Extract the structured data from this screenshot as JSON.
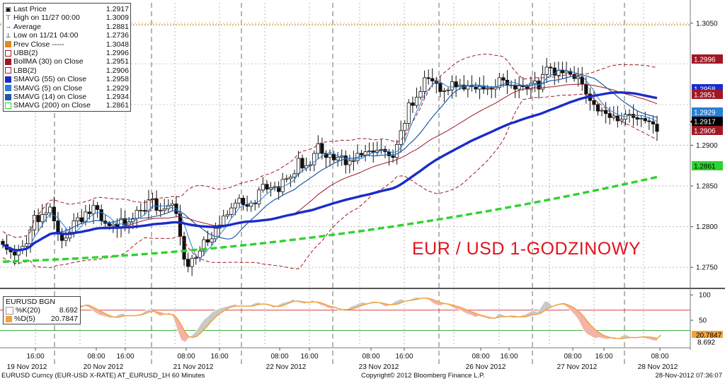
{
  "chart_data": [
    {
      "type": "candlestick",
      "title": "EUR / USD 1-GODZINOWY",
      "y_axis_side": "right",
      "ylim": [
        1.2725,
        1.3075
      ],
      "y_ticks": [
        "1.3050",
        "1.2900",
        "1.2850",
        "1.2800",
        "1.2750"
      ],
      "grid": true,
      "x_ticks": [
        "16:00",
        "08:00",
        "16:00",
        "08:00",
        "16:00",
        "08:00",
        "16:00",
        "08:00",
        "16:00",
        "08:00",
        "16:00",
        "08:00",
        "16:00",
        "08:00"
      ],
      "x_date_labels": [
        "19 Nov 2012",
        "20 Nov 2012",
        "21 Nov 2012",
        "22 Nov 2012",
        "23 Nov 2012",
        "26 Nov 2012",
        "27 Nov 2012",
        "28 Nov 2012"
      ],
      "legend": [
        {
          "label": "Last Price",
          "value": "1.2917",
          "color": "#000000",
          "icon": "candlestick-icon"
        },
        {
          "label": "High on 11/27 00:00",
          "value": "1.3009",
          "color": "#000000",
          "icon": "high-marker-icon"
        },
        {
          "label": "Average",
          "value": "1.2881",
          "color": "#000000",
          "icon": "average-marker-icon"
        },
        {
          "label": "Low on 11/21 04:00",
          "value": "1.2736",
          "color": "#000000",
          "icon": "low-marker-icon"
        },
        {
          "label": "Prev Close -----",
          "value": "1.3048",
          "color": "#e08a1e",
          "icon": "square-icon"
        },
        {
          "label": "UBB(2)",
          "value": "1.2996",
          "color": "#a01824",
          "icon": "square-outline-icon"
        },
        {
          "label": "BollMA (30) on Close",
          "value": "1.2951",
          "color": "#a01824",
          "icon": "square-icon"
        },
        {
          "label": "LBB(2)",
          "value": "1.2906",
          "color": "#a01824",
          "icon": "square-outline-icon"
        },
        {
          "label": "SMAVG (55) on Close",
          "value": "1.2958",
          "color": "#1a2cc8",
          "icon": "square-icon"
        },
        {
          "label": "SMAVG (5) on Close",
          "value": "1.2929",
          "color": "#2a7fd6",
          "icon": "square-icon"
        },
        {
          "label": "SMAVG (14) on Close",
          "value": "1.2934",
          "color": "#1f5aa8",
          "icon": "square-icon"
        },
        {
          "label": "SMAVG (200) on Close",
          "value": "1.2861",
          "color": "#2ed32e",
          "icon": "square-outline-icon"
        }
      ],
      "right_labels": [
        {
          "text": "1.2996",
          "color": "#a01824"
        },
        {
          "text": "1.2958",
          "color": "#1a2cc8"
        },
        {
          "text": "1.2951",
          "color": "#a01824"
        },
        {
          "text": "1.2929",
          "color": "#2a7fd6"
        },
        {
          "text": "1.2917",
          "color": "#000000"
        },
        {
          "text": "1.2906",
          "color": "#a01824"
        },
        {
          "text": "1.2861",
          "color": "#2ed32e"
        }
      ],
      "series": {
        "close": [
          1.2778,
          1.2772,
          1.2769,
          1.2765,
          1.2771,
          1.2776,
          1.2779,
          1.2796,
          1.2814,
          1.2806,
          1.2815,
          1.2817,
          1.2824,
          1.2807,
          1.2791,
          1.2783,
          1.2786,
          1.2793,
          1.2807,
          1.2811,
          1.2806,
          1.2818,
          1.2816,
          1.2826,
          1.2821,
          1.2807,
          1.2804,
          1.2801,
          1.2803,
          1.2799,
          1.281,
          1.2802,
          1.2806,
          1.281,
          1.282,
          1.282,
          1.2819,
          1.2833,
          1.2834,
          1.282,
          1.282,
          1.2822,
          1.2826,
          1.2828,
          1.2816,
          1.2788,
          1.276,
          1.2751,
          1.2761,
          1.2762,
          1.277,
          1.2784,
          1.2781,
          1.2785,
          1.2798,
          1.2802,
          1.2813,
          1.2815,
          1.2823,
          1.2829,
          1.2835,
          1.2827,
          1.2825,
          1.2829,
          1.2828,
          1.2845,
          1.2852,
          1.2846,
          1.2848,
          1.2849,
          1.2843,
          1.2858,
          1.2859,
          1.2861,
          1.2865,
          1.2884,
          1.2872,
          1.2875,
          1.2876,
          1.289,
          1.2902,
          1.289,
          1.2885,
          1.2889,
          1.2882,
          1.2885,
          1.2887,
          1.2876,
          1.2881,
          1.2881,
          1.289,
          1.2888,
          1.2892,
          1.2893,
          1.2891,
          1.2894,
          1.2895,
          1.2892,
          1.2887,
          1.2885,
          1.2901,
          1.2918,
          1.2927,
          1.2952,
          1.2949,
          1.2959,
          1.2966,
          1.2983,
          1.2982,
          1.2979,
          1.2976,
          1.2966,
          1.2967,
          1.2968,
          1.2978,
          1.2972,
          1.2974,
          1.2969,
          1.2973,
          1.2972,
          1.2969,
          1.2973,
          1.2969,
          1.297,
          1.2969,
          1.2971,
          1.2983,
          1.298,
          1.2974,
          1.2974,
          1.2969,
          1.2973,
          1.2972,
          1.2969,
          1.2976,
          1.2979,
          1.2969,
          1.2987,
          1.2996,
          1.2995,
          1.2986,
          1.2992,
          1.2989,
          1.2991,
          1.2987,
          1.2982,
          1.2984,
          1.2975,
          1.2963,
          1.2955,
          1.295,
          1.2942,
          1.2943,
          1.2939,
          1.2934,
          1.2936,
          1.293,
          1.2932,
          1.2938,
          1.2938,
          1.2934,
          1.2932,
          1.2933,
          1.293,
          1.2929,
          1.2926,
          1.2917
        ],
        "bollinger_upper_end": 1.2996,
        "bollinger_mid_end": 1.2951,
        "bollinger_lower_end": 1.2906,
        "sma55_end": 1.2958,
        "sma5_end": 1.2929,
        "sma14_end": 1.2934,
        "sma200_end": 1.2861
      }
    },
    {
      "type": "line",
      "title": "EURUSD BGN",
      "ylim": [
        0,
        110
      ],
      "y_ticks": [
        "100",
        "50"
      ],
      "reference_lines": [
        70,
        30
      ],
      "legend": [
        {
          "label": "%K(20)",
          "value": "8.692",
          "color": "#ffffff"
        },
        {
          "label": "%D(5)",
          "value": "20.7847",
          "color": "#f0a23c"
        }
      ],
      "right_labels": [
        {
          "text": "20.7847",
          "color": "#f0a23c"
        },
        {
          "text": "8.692",
          "color": "#000000"
        }
      ],
      "series": [
        {
          "name": "%K(20)",
          "values": [
            55,
            62,
            70,
            78,
            84,
            80,
            76,
            72,
            74,
            80,
            86,
            88,
            85,
            72,
            58,
            55,
            62,
            66,
            74,
            80,
            82,
            78,
            76,
            70,
            64,
            60,
            58,
            56,
            54,
            58,
            62,
            64,
            60,
            58,
            60,
            62,
            64,
            70,
            72,
            66,
            60,
            58,
            62,
            66,
            56,
            32,
            12,
            6,
            14,
            22,
            30,
            42,
            52,
            58,
            66,
            70,
            74,
            76,
            78,
            80,
            82,
            78,
            76,
            78,
            80,
            84,
            86,
            82,
            80,
            78,
            74,
            80,
            84,
            86,
            88,
            92,
            86,
            84,
            82,
            86,
            90,
            84,
            80,
            78,
            74,
            72,
            74,
            68,
            70,
            72,
            78,
            80,
            84,
            86,
            84,
            86,
            88,
            84,
            80,
            76,
            80,
            86,
            90,
            92,
            88,
            90,
            94,
            96,
            94,
            92,
            90,
            84,
            80,
            78,
            82,
            80,
            76,
            72,
            70,
            66,
            62,
            60,
            56,
            58,
            56,
            54,
            52,
            54,
            64,
            62,
            58,
            56,
            54,
            56,
            60,
            62,
            66,
            70,
            66,
            76,
            88,
            86,
            78,
            82,
            80,
            80,
            74,
            66,
            58,
            46,
            30,
            22,
            18,
            14,
            16,
            14,
            12,
            14,
            12,
            14,
            20,
            22,
            18,
            14,
            14,
            16,
            14,
            12,
            10,
            8.692
          ]
        },
        {
          "name": "%D(5)",
          "values": [
            50,
            56,
            64,
            70,
            76,
            78,
            77,
            75,
            74,
            76,
            80,
            84,
            86,
            82,
            74,
            66,
            60,
            58,
            62,
            68,
            75,
            79,
            80,
            77,
            73,
            69,
            65,
            61,
            58,
            56,
            56,
            58,
            59,
            59,
            59,
            60,
            61,
            64,
            67,
            68,
            66,
            64,
            62,
            62,
            61,
            54,
            42,
            28,
            18,
            16,
            18,
            24,
            32,
            40,
            49,
            57,
            63,
            68,
            73,
            76,
            78,
            78,
            78,
            78,
            78,
            79,
            81,
            82,
            82,
            80,
            78,
            77,
            78,
            81,
            84,
            87,
            88,
            87,
            86,
            85,
            86,
            86,
            85,
            82,
            79,
            77,
            75,
            72,
            71,
            71,
            72,
            74,
            77,
            80,
            82,
            84,
            85,
            85,
            84,
            82,
            81,
            81,
            82,
            85,
            88,
            89,
            90,
            91,
            93,
            94,
            93,
            91,
            88,
            85,
            83,
            82,
            80,
            78,
            76,
            73,
            70,
            67,
            64,
            61,
            59,
            57,
            55,
            54,
            56,
            57,
            57,
            58,
            58,
            57,
            57,
            57,
            59,
            61,
            62,
            64,
            69,
            74,
            77,
            80,
            82,
            83,
            80,
            77,
            72,
            66,
            58,
            48,
            39,
            32,
            26,
            21,
            18,
            16,
            15,
            14,
            14,
            15,
            16,
            16,
            16,
            17,
            17,
            17,
            16,
            14,
            20.7847
          ]
        }
      ]
    }
  ],
  "annotation": "EUR / USD 1-GODZINOWY",
  "footer": {
    "left": "EURUSD Curncy (EUR-USD X-RATE) AT_EURUSD_1H  60 Minutes",
    "center": "Copyright© 2012 Bloomberg Finance L.P.",
    "right": "28-Nov-2012 07:36:07"
  }
}
